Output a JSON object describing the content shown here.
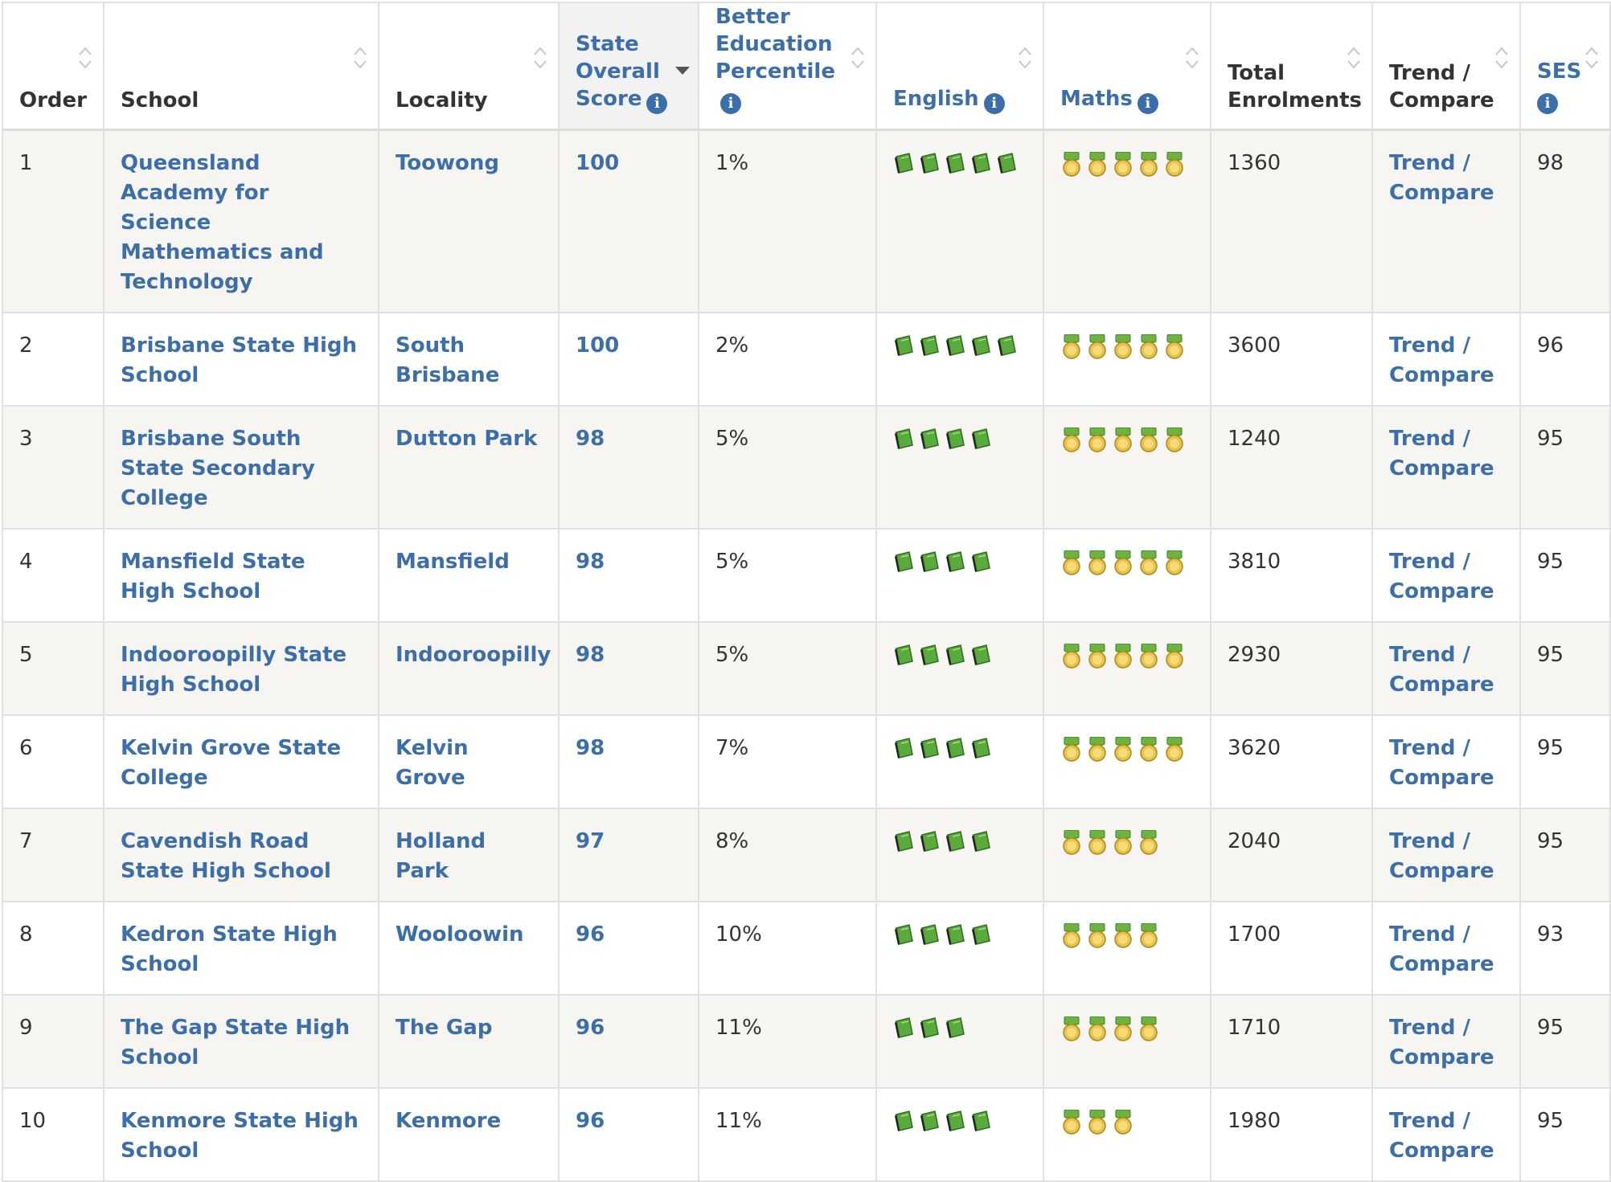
{
  "headers": {
    "order": "Order",
    "school": "School",
    "locality": "Locality",
    "score": "State Overall Score",
    "percentile": "Better Education Percentile",
    "english": "English",
    "maths": "Maths",
    "enrolments": "Total Enrolments",
    "trend": "Trend / Compare",
    "ses": "SES"
  },
  "colors": {
    "link": "#3c6eaa",
    "row_alt": "#f6f5f1",
    "book": "#5aaa3c",
    "medal": "#e8c24a",
    "medal_ribbon": "#6cb33f"
  },
  "sorted_column": "score",
  "sort_direction": "descending",
  "rows": [
    {
      "order": "1",
      "school": "Queensland Academy for Science Mathematics and Technology",
      "locality": "Toowong",
      "score": "100",
      "percentile": "1%",
      "english": 5,
      "maths": 5,
      "enrolments": "1360",
      "trend": "Trend / Compare",
      "ses": "98"
    },
    {
      "order": "2",
      "school": "Brisbane State High School",
      "locality": "South Brisbane",
      "score": "100",
      "percentile": "2%",
      "english": 5,
      "maths": 5,
      "enrolments": "3600",
      "trend": "Trend / Compare",
      "ses": "96"
    },
    {
      "order": "3",
      "school": "Brisbane South State Secondary College",
      "locality": "Dutton Park",
      "score": "98",
      "percentile": "5%",
      "english": 4,
      "maths": 5,
      "enrolments": "1240",
      "trend": "Trend / Compare",
      "ses": "95"
    },
    {
      "order": "4",
      "school": "Mansfield State High School",
      "locality": "Mansfield",
      "score": "98",
      "percentile": "5%",
      "english": 4,
      "maths": 5,
      "enrolments": "3810",
      "trend": "Trend / Compare",
      "ses": "95"
    },
    {
      "order": "5",
      "school": "Indooroopilly State High School",
      "locality": "Indooroopilly",
      "score": "98",
      "percentile": "5%",
      "english": 4,
      "maths": 5,
      "enrolments": "2930",
      "trend": "Trend / Compare",
      "ses": "95"
    },
    {
      "order": "6",
      "school": "Kelvin Grove State College",
      "locality": "Kelvin Grove",
      "score": "98",
      "percentile": "7%",
      "english": 4,
      "maths": 5,
      "enrolments": "3620",
      "trend": "Trend / Compare",
      "ses": "95"
    },
    {
      "order": "7",
      "school": "Cavendish Road State High School",
      "locality": "Holland Park",
      "score": "97",
      "percentile": "8%",
      "english": 4,
      "maths": 4,
      "enrolments": "2040",
      "trend": "Trend / Compare",
      "ses": "95"
    },
    {
      "order": "8",
      "school": "Kedron State High School",
      "locality": "Wooloowin",
      "score": "96",
      "percentile": "10%",
      "english": 4,
      "maths": 4,
      "enrolments": "1700",
      "trend": "Trend / Compare",
      "ses": "93"
    },
    {
      "order": "9",
      "school": "The Gap State High School",
      "locality": "The Gap",
      "score": "96",
      "percentile": "11%",
      "english": 3,
      "maths": 4,
      "enrolments": "1710",
      "trend": "Trend / Compare",
      "ses": "95"
    },
    {
      "order": "10",
      "school": "Kenmore State High School",
      "locality": "Kenmore",
      "score": "96",
      "percentile": "11%",
      "english": 4,
      "maths": 3,
      "enrolments": "1980",
      "trend": "Trend / Compare",
      "ses": "95"
    }
  ]
}
